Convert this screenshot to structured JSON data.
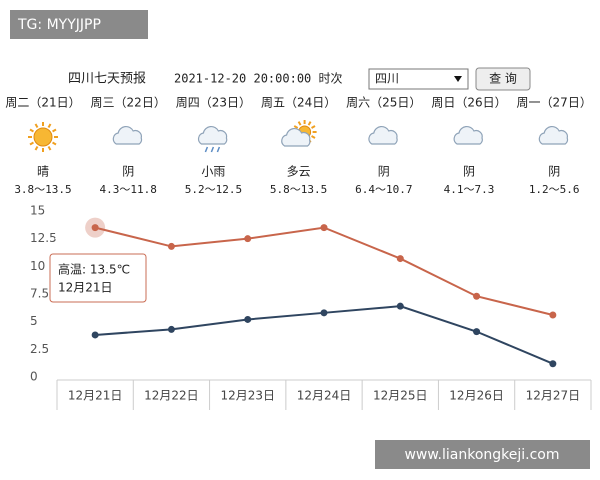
{
  "watermark_top": "TG: MYYJJPP",
  "watermark_bottom": "www.liankongkeji.com",
  "header": {
    "title": "四川七天预报",
    "time": "2021-12-20 20:00:00 时次",
    "region": "四川",
    "button": "查 询"
  },
  "days": [
    {
      "weekday": "周二（21日）",
      "weather": "晴",
      "range": "3.8～13.5"
    },
    {
      "weekday": "周三（22日）",
      "weather": "阴",
      "range": "4.3～11.8"
    },
    {
      "weekday": "周四（23日）",
      "weather": "小雨",
      "range": "5.2～12.5"
    },
    {
      "weekday": "周五（24日）",
      "weather": "多云",
      "range": "5.8～13.5"
    },
    {
      "weekday": "周六（25日）",
      "weather": "阴",
      "range": "6.4～10.7"
    },
    {
      "weekday": "周日（26日）",
      "weather": "阴",
      "range": "4.1～7.3"
    },
    {
      "weekday": "周一（27日）",
      "weather": "阴",
      "range": "1.2～5.6"
    }
  ],
  "tooltip": {
    "line1": "高温: 13.5℃",
    "line2": "12月21日"
  },
  "chart_data": {
    "type": "line",
    "categories": [
      "12月21日",
      "12月22日",
      "12月23日",
      "12月24日",
      "12月25日",
      "12月26日",
      "12月27日"
    ],
    "series": [
      {
        "color": "#c8654b",
        "values": [
          13.5,
          11.8,
          12.5,
          13.5,
          10.7,
          7.3,
          5.6
        ]
      },
      {
        "color": "#2f4560",
        "values": [
          3.8,
          4.3,
          5.2,
          5.8,
          6.4,
          4.1,
          1.2
        ]
      }
    ],
    "ylim": [
      0,
      15
    ],
    "yticks": [
      0,
      2.5,
      5,
      7.5,
      10,
      12.5,
      15
    ]
  }
}
